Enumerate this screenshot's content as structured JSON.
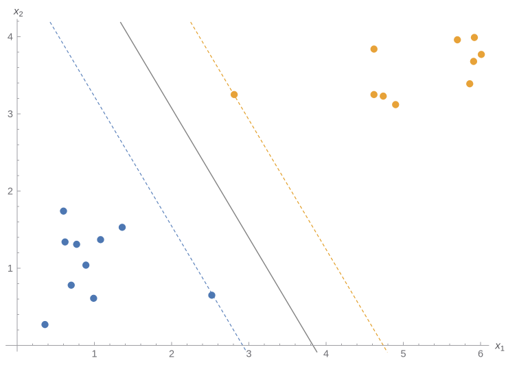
{
  "page": {
    "background": "#ffffff",
    "description": "SVM-style scatter plot with two point classes, a solid decision boundary and two dashed margin lines"
  },
  "chart_data": {
    "type": "scatter",
    "title": "",
    "xlabel": {
      "base": "x",
      "sub": "1"
    },
    "ylabel": {
      "base": "x",
      "sub": "2"
    },
    "xlim": [
      -0.15,
      6.11
    ],
    "ylim": [
      -0.08,
      4.23
    ],
    "x_major_ticks": [
      1,
      2,
      3,
      4,
      5,
      6
    ],
    "y_major_ticks": [
      1,
      2,
      3,
      4
    ],
    "minor_tick_step": 0.2,
    "grid": false,
    "legend": "none",
    "axis_color": "#9e9ea3",
    "tick_label_color": "#6f6f74",
    "axis_label_color": "#55555a",
    "point_radius": 5.2,
    "series": [
      {
        "name": "class-blue",
        "marker": "circle",
        "color": "#4d77b2",
        "points": [
          [
            0.36,
            0.27
          ],
          [
            0.6,
            1.74
          ],
          [
            0.62,
            1.34
          ],
          [
            0.7,
            0.78
          ],
          [
            0.77,
            1.31
          ],
          [
            0.89,
            1.04
          ],
          [
            0.99,
            0.61
          ],
          [
            1.08,
            1.37
          ],
          [
            1.36,
            1.53
          ],
          [
            2.52,
            0.65
          ]
        ]
      },
      {
        "name": "class-orange",
        "marker": "circle",
        "color": "#e7a238",
        "points": [
          [
            2.81,
            3.25
          ],
          [
            4.62,
            3.84
          ],
          [
            4.62,
            3.25
          ],
          [
            4.74,
            3.23
          ],
          [
            4.9,
            3.12
          ],
          [
            5.7,
            3.96
          ],
          [
            5.92,
            3.99
          ],
          [
            6.01,
            3.77
          ],
          [
            5.91,
            3.68
          ],
          [
            5.86,
            3.39
          ]
        ]
      }
    ],
    "lines": [
      {
        "name": "margin-line-blue",
        "style": "dashed",
        "color": "#5c82bb",
        "width": 1.2,
        "from": [
          0.426,
          4.19
        ],
        "to": [
          2.974,
          -0.09
        ]
      },
      {
        "name": "decision-boundary-line",
        "style": "solid",
        "color": "#828282",
        "width": 1.4,
        "from": [
          1.336,
          4.19
        ],
        "to": [
          3.884,
          -0.09
        ]
      },
      {
        "name": "margin-line-orange",
        "style": "dashed",
        "color": "#e29e28",
        "width": 1.2,
        "from": [
          2.246,
          4.19
        ],
        "to": [
          4.794,
          -0.09
        ]
      }
    ]
  }
}
